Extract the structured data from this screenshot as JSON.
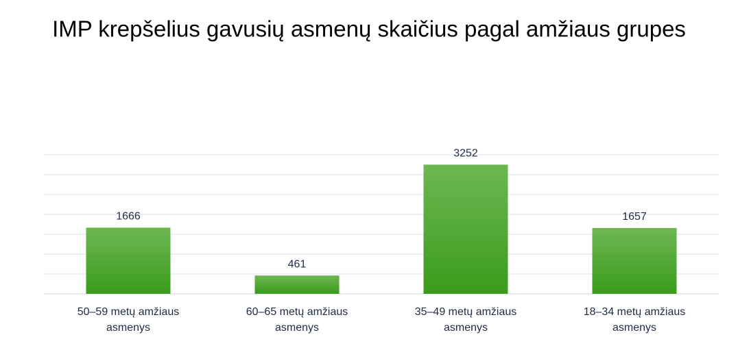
{
  "chart_data": {
    "type": "bar",
    "title": "IMP krepšelius gavusių asmenų skaičius pagal amžiaus grupes",
    "categories": [
      "50–59 metų amžiaus asmenys",
      "60–65 metų amžiaus asmenys",
      "35–49 metų amžiaus asmenys",
      "18–34 metų amžiaus asmenys"
    ],
    "values": [
      1666,
      461,
      3252,
      1657
    ],
    "color": "#4aa82c",
    "ylim": [
      0,
      3500
    ],
    "yticks": [
      0,
      500,
      1000,
      1500,
      2000,
      2500,
      3000,
      3500
    ],
    "grid": true
  }
}
